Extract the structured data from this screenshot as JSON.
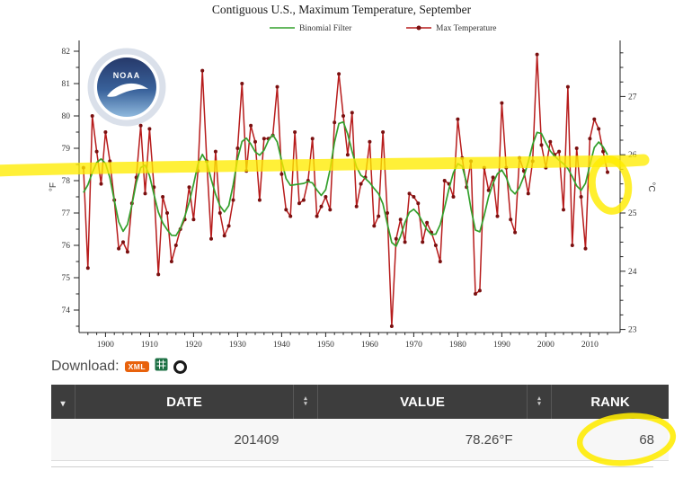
{
  "chart_data": {
    "type": "line",
    "title": "Contiguous U.S., Maximum Temperature, September",
    "ylabel_left": "°F",
    "ylabel_right": "°C",
    "ylim_f": [
      73.3,
      82.3
    ],
    "yticks_f": [
      74,
      75,
      76,
      77,
      78,
      79,
      80,
      81,
      82
    ],
    "yticks_c": [
      23,
      24,
      25,
      26,
      27
    ],
    "xticks": [
      1900,
      1910,
      1920,
      1930,
      1940,
      1950,
      1960,
      1970,
      1980,
      1990,
      2000,
      2010
    ],
    "grid": false,
    "legend_position": "top",
    "years": [
      1895,
      1896,
      1897,
      1898,
      1899,
      1900,
      1901,
      1902,
      1903,
      1904,
      1905,
      1906,
      1907,
      1908,
      1909,
      1910,
      1911,
      1912,
      1913,
      1914,
      1915,
      1916,
      1917,
      1918,
      1919,
      1920,
      1921,
      1922,
      1923,
      1924,
      1925,
      1926,
      1927,
      1928,
      1929,
      1930,
      1931,
      1932,
      1933,
      1934,
      1935,
      1936,
      1937,
      1938,
      1939,
      1940,
      1941,
      1942,
      1943,
      1944,
      1945,
      1946,
      1947,
      1948,
      1949,
      1950,
      1951,
      1952,
      1953,
      1954,
      1955,
      1956,
      1957,
      1958,
      1959,
      1960,
      1961,
      1962,
      1963,
      1964,
      1965,
      1966,
      1967,
      1968,
      1969,
      1970,
      1971,
      1972,
      1973,
      1974,
      1975,
      1976,
      1977,
      1978,
      1979,
      1980,
      1981,
      1982,
      1983,
      1984,
      1985,
      1986,
      1987,
      1988,
      1989,
      1990,
      1991,
      1992,
      1993,
      1994,
      1995,
      1996,
      1997,
      1998,
      1999,
      2000,
      2001,
      2002,
      2003,
      2004,
      2005,
      2006,
      2007,
      2008,
      2009,
      2010,
      2011,
      2012,
      2013,
      2014
    ],
    "series": [
      {
        "name": "Max Temperature",
        "color": "#b71c1c",
        "marker_color": "#7a1010",
        "values": [
          78.4,
          75.3,
          80.0,
          78.9,
          77.9,
          79.5,
          78.6,
          77.4,
          75.9,
          76.1,
          75.8,
          77.3,
          78.1,
          79.7,
          77.6,
          79.6,
          77.8,
          75.1,
          77.5,
          77.0,
          75.5,
          76.0,
          76.5,
          76.8,
          77.8,
          76.8,
          78.3,
          81.4,
          78.6,
          76.2,
          78.9,
          77.0,
          76.3,
          76.6,
          77.4,
          79.0,
          81.0,
          78.3,
          79.7,
          79.2,
          77.4,
          79.3,
          79.3,
          79.4,
          80.9,
          78.2,
          77.1,
          76.9,
          79.5,
          77.3,
          77.4,
          78.0,
          79.3,
          76.9,
          77.2,
          77.5,
          77.1,
          79.8,
          81.3,
          80.0,
          78.8,
          80.1,
          77.2,
          77.9,
          78.1,
          79.2,
          76.6,
          76.9,
          79.5,
          77.0,
          73.5,
          76.2,
          76.8,
          76.1,
          77.6,
          77.5,
          77.3,
          76.1,
          76.7,
          76.4,
          76.0,
          75.5,
          78.0,
          77.9,
          77.5,
          79.9,
          78.7,
          77.8,
          78.6,
          74.5,
          74.6,
          78.4,
          77.7,
          78.1,
          76.9,
          80.4,
          78.4,
          76.8,
          76.4,
          78.7,
          78.3,
          77.6,
          78.6,
          81.9,
          79.1,
          78.4,
          79.2,
          78.8,
          78.9,
          77.1,
          80.9,
          76.0,
          79.0,
          77.5,
          75.9,
          79.3,
          79.9,
          79.6,
          78.9,
          78.26
        ]
      },
      {
        "name": "Binomial Filter",
        "color": "#33a02c",
        "derived_from": "9-point binomial smoothing of Max Temperature"
      }
    ]
  },
  "annotations": {
    "highlighter_color": "#ffec00",
    "highlight_line_f": 78.3,
    "circled_point_year": 2014,
    "circled_table_value": "68"
  },
  "download": {
    "label": "Download:",
    "xml_text": "XML",
    "icons": [
      "xml-icon",
      "excel-icon",
      "ring-icon"
    ]
  },
  "table": {
    "headers": [
      "DATE",
      "VALUE",
      "RANK"
    ],
    "rows": [
      [
        "201409",
        "78.26°F",
        "68"
      ]
    ],
    "filter_arrow": "▾",
    "sort_up": "▴",
    "sort_down": "▾",
    "rank_color": "#2d7f8f",
    "header_bg": "#3d3d3d"
  }
}
